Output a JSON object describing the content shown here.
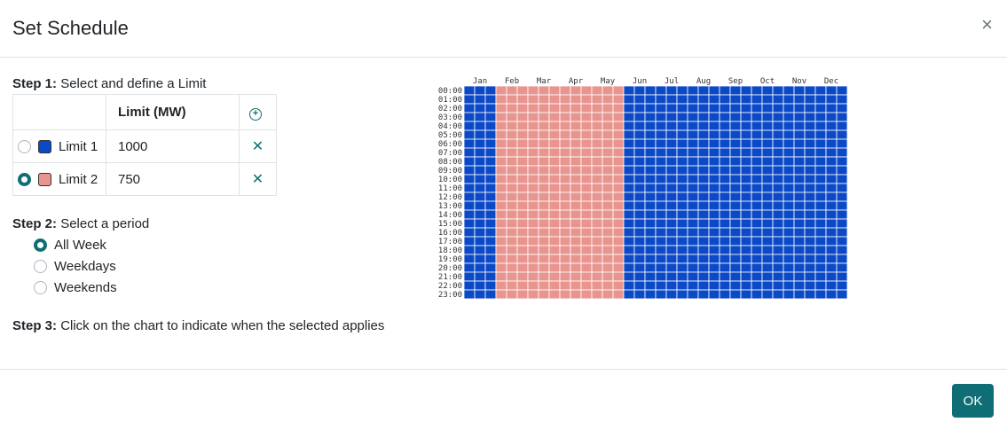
{
  "dialog": {
    "title": "Set Schedule",
    "close_glyph": "×"
  },
  "step1": {
    "label": "Step 1:",
    "text": "Select and define a Limit",
    "column_header": "Limit (MW)",
    "add_icon": "plus-circle-icon",
    "limits": [
      {
        "name": "Limit 1",
        "value": "1000",
        "color": "#0b49c7",
        "selected": false
      },
      {
        "name": "Limit 2",
        "value": "750",
        "color": "#e8958f",
        "selected": true
      }
    ],
    "remove_glyph": "✕"
  },
  "step2": {
    "label": "Step 2:",
    "text": "Select a period",
    "options": [
      {
        "label": "All Week",
        "selected": true
      },
      {
        "label": "Weekdays",
        "selected": false
      },
      {
        "label": "Weekends",
        "selected": false
      }
    ]
  },
  "step3": {
    "label": "Step 3:",
    "text": "Click on the chart to indicate when the selected applies"
  },
  "chart_data": {
    "type": "heatmap",
    "months": [
      "Jan",
      "Feb",
      "Mar",
      "Apr",
      "May",
      "Jun",
      "Jul",
      "Aug",
      "Sep",
      "Oct",
      "Nov",
      "Dec"
    ],
    "hours": [
      "00:00",
      "01:00",
      "02:00",
      "03:00",
      "04:00",
      "05:00",
      "06:00",
      "07:00",
      "08:00",
      "09:00",
      "10:00",
      "11:00",
      "12:00",
      "13:00",
      "14:00",
      "15:00",
      "16:00",
      "17:00",
      "18:00",
      "19:00",
      "20:00",
      "21:00",
      "22:00",
      "23:00"
    ],
    "month_limit": [
      1,
      2,
      2,
      2,
      2,
      1,
      1,
      1,
      1,
      1,
      1,
      1
    ],
    "limit_colors": {
      "1": "#0b49c7",
      "2": "#e8958f"
    }
  },
  "footer": {
    "ok_label": "OK"
  }
}
